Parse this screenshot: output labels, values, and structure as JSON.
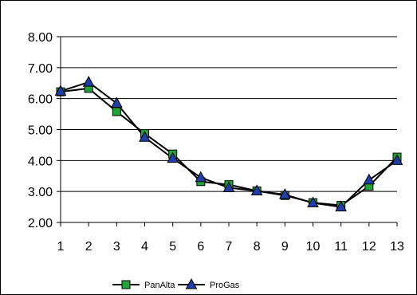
{
  "chart_data": {
    "type": "line",
    "title": "",
    "xlabel": "",
    "ylabel": "",
    "x": [
      "1",
      "2",
      "3",
      "4",
      "5",
      "6",
      "7",
      "8",
      "9",
      "10",
      "11",
      "12",
      "13"
    ],
    "ylim": [
      2.0,
      8.0
    ],
    "yticks": [
      "2.00",
      "3.00",
      "4.00",
      "5.00",
      "6.00",
      "7.00",
      "8.00"
    ],
    "grid": "horizontal",
    "legend_position": "bottom",
    "series": [
      {
        "name": "PanAlta",
        "marker": "square",
        "marker_color": "#22a33a",
        "line_color": "#000000",
        "values": [
          6.22,
          6.33,
          5.58,
          4.87,
          4.21,
          3.32,
          3.22,
          3.02,
          2.87,
          2.64,
          2.55,
          3.17,
          4.11
        ]
      },
      {
        "name": "ProGas",
        "marker": "triangle",
        "marker_color": "#1f3fa6",
        "line_color": "#000000",
        "values": [
          6.24,
          6.53,
          5.85,
          4.75,
          4.07,
          3.45,
          3.12,
          3.02,
          2.9,
          2.63,
          2.5,
          3.37,
          4.0
        ]
      }
    ]
  }
}
